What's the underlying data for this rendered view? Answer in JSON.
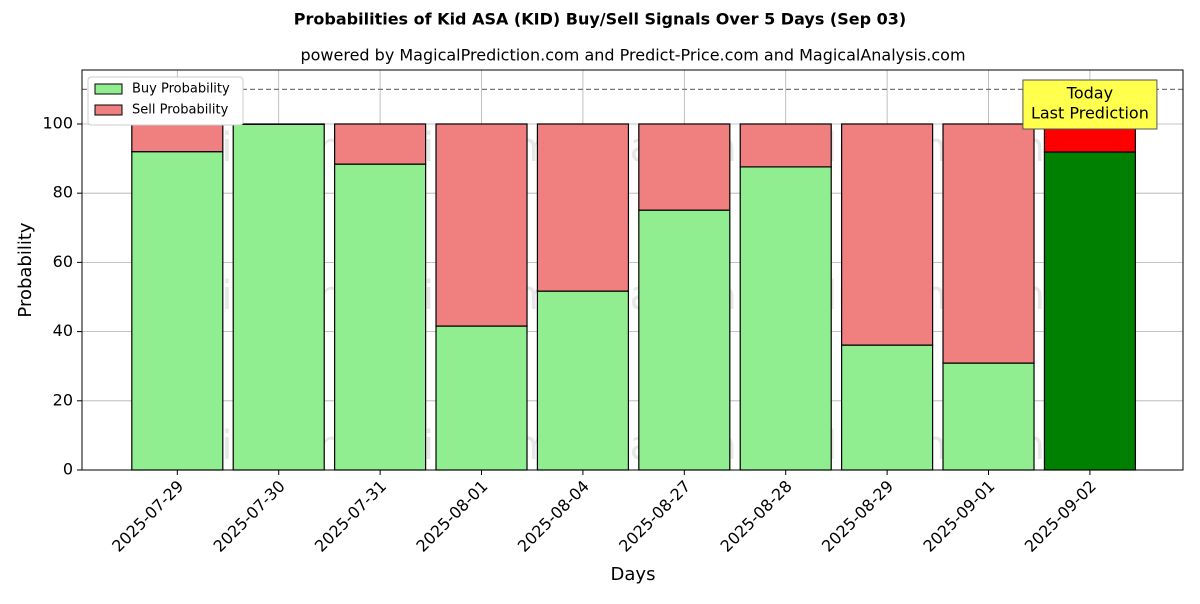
{
  "chart_data": {
    "type": "stacked_bar",
    "title": "Probabilities of Kid ASA (KID) Buy/Sell Signals Over 5 Days (Sep 03)",
    "subtitle": "powered by MagicalPrediction.com and Predict-Price.com and MagicalAnalysis.com",
    "x_label": "Days",
    "y_label": "Probability",
    "categories": [
      "2025-07-29",
      "2025-07-30",
      "2025-07-31",
      "2025-08-01",
      "2025-08-04",
      "2025-08-27",
      "2025-08-28",
      "2025-08-29",
      "2025-09-01",
      "2025-09-02"
    ],
    "series": [
      {
        "name": "Buy Probability",
        "color": "#90ee90",
        "highlight_color": "#008000",
        "values": [
          92.0,
          99.9,
          88.4,
          41.6,
          51.7,
          75.1,
          87.6,
          36.1,
          30.9,
          91.9
        ]
      },
      {
        "name": "Sell Probability",
        "color": "#f08080",
        "highlight_color": "#ff0000",
        "values": [
          8.0,
          0.1,
          11.6,
          58.4,
          48.3,
          24.9,
          12.4,
          63.9,
          69.1,
          8.1
        ]
      }
    ],
    "highlight_index": 9,
    "annotation": [
      "Today",
      "Last Prediction"
    ],
    "reference_line": 110,
    "watermarks": [
      "MagicalAnalysis.com",
      "MagicalPrediction.com"
    ],
    "ylim": [
      0,
      115.6
    ],
    "yticks": [
      0,
      20,
      40,
      60,
      80,
      100
    ],
    "grid": true,
    "legend": "upper left"
  }
}
